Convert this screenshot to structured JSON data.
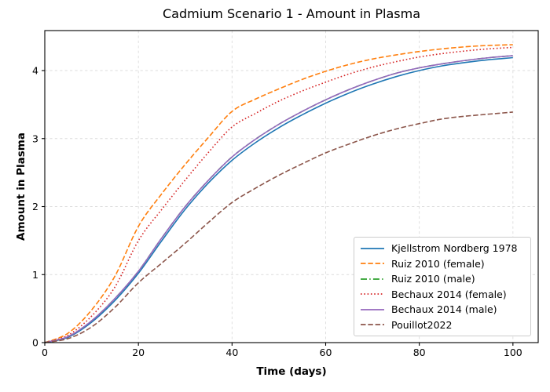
{
  "chart_data": {
    "type": "line",
    "title": "Cadmium Scenario 1 - Amount in Plasma",
    "xlabel": "Time (days)",
    "ylabel": "Amount in Plasma",
    "xlim": [
      0,
      105.4
    ],
    "ylim": [
      0,
      4.588
    ],
    "x_ticks": [
      0,
      20,
      40,
      60,
      80,
      100
    ],
    "y_ticks": [
      0,
      1,
      2,
      3,
      4
    ],
    "grid": true,
    "grid_color": "#dcdcdc",
    "legend_position": "lower right",
    "x": [
      0,
      5,
      10,
      15,
      20,
      25,
      30,
      35,
      40,
      45,
      50,
      55,
      60,
      65,
      70,
      75,
      80,
      85,
      90,
      95,
      100
    ],
    "series": [
      {
        "name": "Kjellstrom Nordberg 1978",
        "color": "#1f77b4",
        "style": "solid",
        "values": [
          0,
          0.08,
          0.3,
          0.62,
          1.02,
          1.5,
          1.96,
          2.35,
          2.68,
          2.94,
          3.16,
          3.35,
          3.52,
          3.67,
          3.8,
          3.91,
          4.0,
          4.07,
          4.12,
          4.16,
          4.19
        ]
      },
      {
        "name": "Ruiz 2010 (female)",
        "color": "#ff7f0e",
        "style": "dashed",
        "values": [
          0,
          0.14,
          0.48,
          0.98,
          1.71,
          2.19,
          2.62,
          3.02,
          3.4,
          3.58,
          3.73,
          3.87,
          3.99,
          4.09,
          4.17,
          4.23,
          4.28,
          4.32,
          4.35,
          4.37,
          4.38
        ]
      },
      {
        "name": "Ruiz 2010 (male)",
        "color": "#2ca02c",
        "style": "dashdot",
        "values": [
          0,
          0.09,
          0.32,
          0.65,
          1.05,
          1.54,
          2.0,
          2.39,
          2.73,
          2.99,
          3.21,
          3.4,
          3.57,
          3.72,
          3.85,
          3.96,
          4.04,
          4.1,
          4.15,
          4.19,
          4.22
        ]
      },
      {
        "name": "Bechaux 2014 (female)",
        "color": "#d62728",
        "style": "dotted",
        "values": [
          0,
          0.11,
          0.39,
          0.82,
          1.5,
          1.96,
          2.39,
          2.8,
          3.17,
          3.37,
          3.55,
          3.7,
          3.83,
          3.95,
          4.05,
          4.13,
          4.2,
          4.25,
          4.29,
          4.32,
          4.34
        ]
      },
      {
        "name": "Bechaux 2014 (male)",
        "color": "#9467bd",
        "style": "solid",
        "values": [
          0,
          0.09,
          0.32,
          0.65,
          1.05,
          1.54,
          2.0,
          2.39,
          2.73,
          2.99,
          3.21,
          3.4,
          3.57,
          3.72,
          3.85,
          3.96,
          4.04,
          4.1,
          4.15,
          4.19,
          4.22
        ]
      },
      {
        "name": "Pouillot2022",
        "color": "#8c564b",
        "style": "dashed",
        "values": [
          0,
          0.06,
          0.23,
          0.52,
          0.88,
          1.17,
          1.46,
          1.77,
          2.06,
          2.27,
          2.46,
          2.63,
          2.79,
          2.92,
          3.04,
          3.14,
          3.22,
          3.29,
          3.33,
          3.36,
          3.39
        ]
      }
    ]
  }
}
